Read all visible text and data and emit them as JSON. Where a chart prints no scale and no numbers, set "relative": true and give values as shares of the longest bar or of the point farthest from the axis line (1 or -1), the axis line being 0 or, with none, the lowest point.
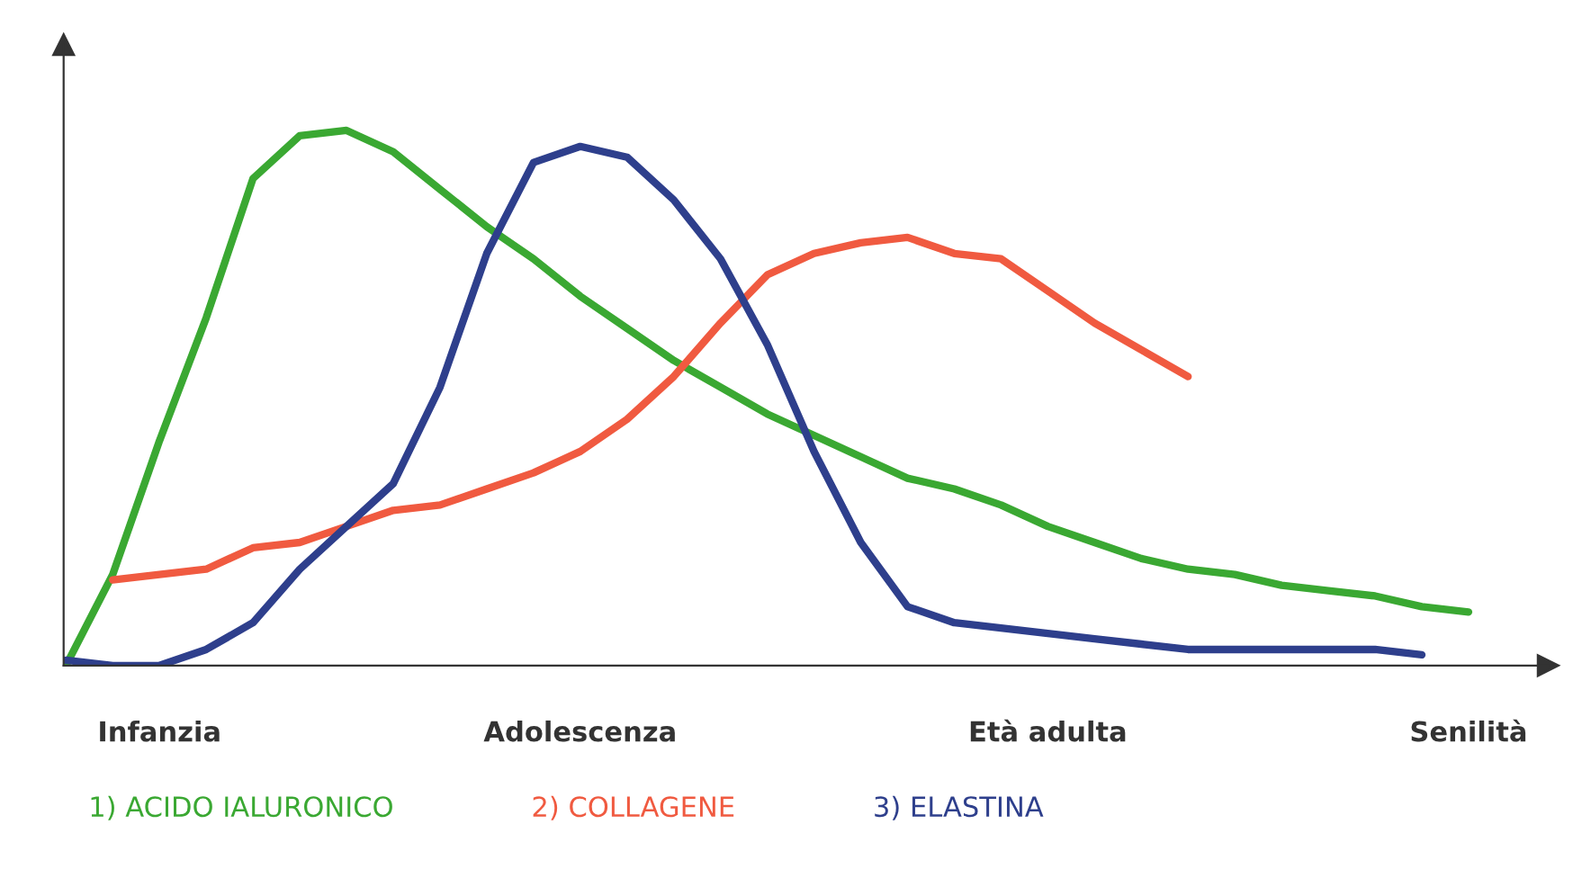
{
  "chart_data": {
    "type": "line",
    "relative": true,
    "legend": "bottom",
    "marker": "none",
    "line_style": "solid",
    "categories": [
      null,
      null,
      "Infanzia",
      null,
      null,
      null,
      null,
      null,
      null,
      null,
      null,
      "Adolescenza",
      null,
      null,
      null,
      null,
      null,
      null,
      null,
      null,
      null,
      "Età adulta",
      null,
      null,
      null,
      null,
      null,
      null,
      null,
      null,
      "Senilità"
    ],
    "series": [
      {
        "name": "1) ACIDO IALURONICO",
        "color": "#3aa832",
        "values": [
          0,
          0.17,
          0.42,
          0.65,
          0.91,
          0.99,
          1.0,
          0.96,
          0.89,
          0.82,
          0.76,
          0.69,
          0.63,
          0.57,
          0.52,
          0.47,
          0.43,
          0.39,
          0.35,
          0.33,
          0.3,
          0.26,
          0.23,
          0.2,
          0.18,
          0.17,
          0.15,
          0.14,
          0.13,
          0.11,
          0.1
        ]
      },
      {
        "name": "2) COLLAGENE",
        "color": "#f05a40",
        "values": [
          null,
          0.16,
          0.17,
          0.18,
          0.22,
          0.23,
          0.26,
          0.29,
          0.3,
          0.33,
          0.36,
          0.4,
          0.46,
          0.54,
          0.64,
          0.73,
          0.77,
          0.79,
          0.8,
          0.77,
          0.76,
          0.7,
          0.64,
          0.59,
          0.54,
          null,
          null,
          null,
          null,
          null,
          null
        ]
      },
      {
        "name": "3) ELASTINA",
        "color": "#2e3f8c",
        "values": [
          0.01,
          0,
          0,
          0.03,
          0.08,
          0.18,
          0.26,
          0.34,
          0.52,
          0.77,
          0.94,
          0.97,
          0.95,
          0.87,
          0.76,
          0.6,
          0.4,
          0.23,
          0.11,
          0.08,
          0.07,
          0.06,
          0.05,
          0.04,
          0.03,
          0.03,
          0.03,
          0.03,
          0.03,
          0.02,
          null
        ]
      }
    ]
  }
}
